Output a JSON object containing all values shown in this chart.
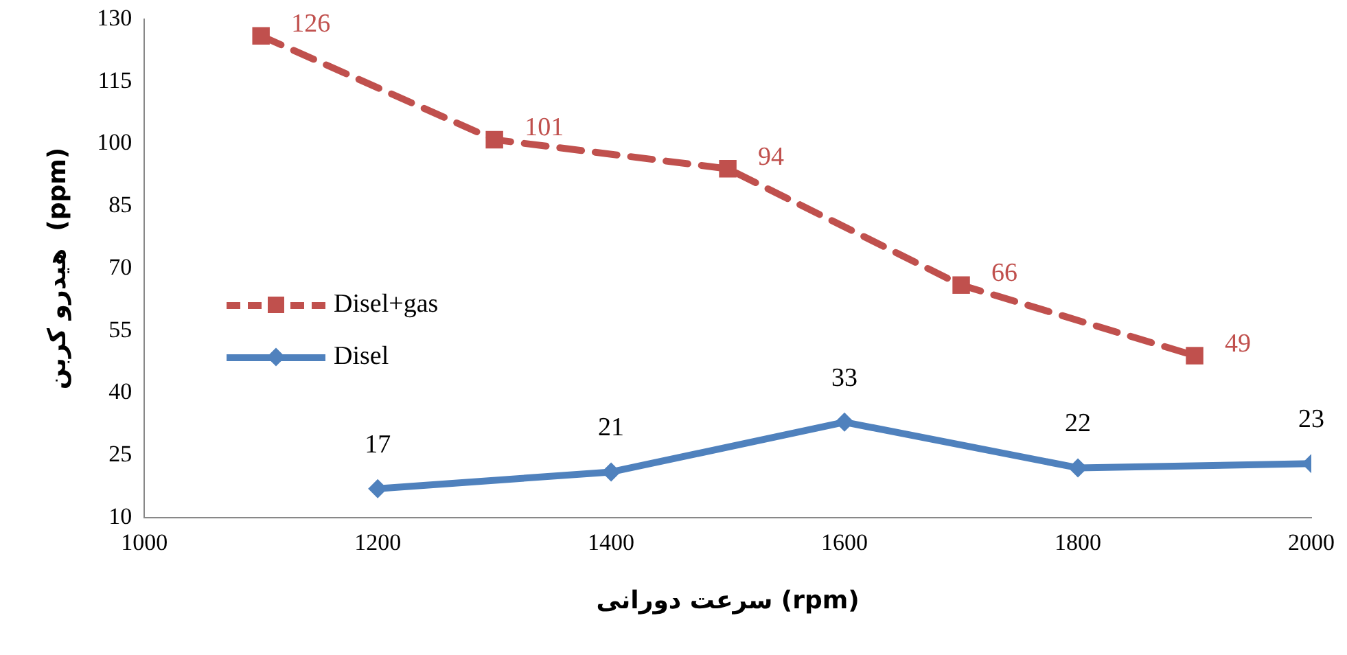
{
  "chart_data": {
    "type": "line",
    "xlabel": "سرعت دورانی (rpm)",
    "ylabel": "هیدرو کربن  (ppm)",
    "xlim": [
      1000,
      2000
    ],
    "xticks": [
      1000,
      1200,
      1400,
      1600,
      1800,
      2000
    ],
    "ylim": [
      10,
      130
    ],
    "yticks": [
      10,
      25,
      40,
      55,
      70,
      85,
      100,
      115,
      130
    ],
    "grid": false,
    "legend": "left",
    "data_labels": true,
    "series": [
      {
        "name": "Disel+gas",
        "color": "#c0504d",
        "marker": "square",
        "line_style": "dashed",
        "x": [
          1100,
          1300,
          1500,
          1700,
          1900
        ],
        "values": [
          126,
          101,
          94,
          66,
          49
        ]
      },
      {
        "name": "Disel",
        "color": "#4f81bd",
        "marker": "diamond",
        "line_style": "solid",
        "x": [
          1200,
          1400,
          1600,
          1800,
          2000
        ],
        "values": [
          17,
          21,
          33,
          22,
          23
        ]
      }
    ]
  }
}
